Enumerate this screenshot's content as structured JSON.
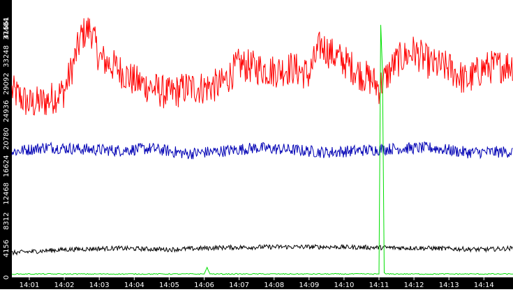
{
  "chart_data": {
    "type": "line",
    "title": "",
    "xlabel": "",
    "ylabel": "",
    "ylim": [
      0,
      41561
    ],
    "xlim": [
      "14:00:30",
      "14:14:50"
    ],
    "y_ticks": [
      "0",
      "4156",
      "8312",
      "12468",
      "16624",
      "20780",
      "24936",
      "29092",
      "33248",
      "37404",
      "41561"
    ],
    "x_ticks": [
      "14:01",
      "14:02",
      "14:03",
      "14:04",
      "14:05",
      "14:06",
      "14:07",
      "14:08",
      "14:09",
      "14:10",
      "14:11",
      "14:12",
      "14:13",
      "14:14"
    ],
    "grid": false,
    "legend": "none",
    "colors": {
      "background": "#ffffff",
      "axis_band": "#000000",
      "axis_text": "#ffffff",
      "red_series": "#ff0000",
      "blue_series": "#0000b4",
      "black_series": "#000000",
      "green_series": "#00e000"
    },
    "series": [
      {
        "color": "#ff0000",
        "x": [
          "14:00:30",
          "14:01:00",
          "14:01:30",
          "14:02:00",
          "14:02:15",
          "14:02:30",
          "14:02:45",
          "14:03:00",
          "14:03:30",
          "14:04:00",
          "14:04:30",
          "14:05:00",
          "14:05:30",
          "14:06:00",
          "14:06:30",
          "14:07:00",
          "14:07:30",
          "14:08:00",
          "14:08:30",
          "14:09:00",
          "14:09:20",
          "14:09:40",
          "14:10:00",
          "14:10:30",
          "14:10:50",
          "14:11:00",
          "14:11:30",
          "14:12:00",
          "14:12:30",
          "14:13:00",
          "14:13:30",
          "14:14:00",
          "14:14:50"
        ],
        "values": [
          28000,
          26000,
          26500,
          28000,
          32000,
          36500,
          37500,
          33000,
          31500,
          29500,
          28500,
          27500,
          28500,
          28500,
          29000,
          32000,
          31500,
          31000,
          31500,
          30500,
          35000,
          33500,
          32500,
          30500,
          29500,
          28500,
          32500,
          34000,
          32000,
          31500,
          29500,
          31500,
          32000
        ]
      },
      {
        "color": "#0000b4",
        "x": [
          "14:00:30",
          "14:01:30",
          "14:02:30",
          "14:03:30",
          "14:04:30",
          "14:05:30",
          "14:06:30",
          "14:07:30",
          "14:08:30",
          "14:09:30",
          "14:10:30",
          "14:11:30",
          "14:12:30",
          "14:13:30",
          "14:14:50"
        ],
        "values": [
          18800,
          19500,
          19200,
          19000,
          19300,
          18500,
          18900,
          19400,
          19100,
          18700,
          19000,
          19300,
          19400,
          18700,
          18800
        ]
      },
      {
        "color": "#000000",
        "x": [
          "14:00:30",
          "14:02:00",
          "14:03:30",
          "14:05:00",
          "14:06:30",
          "14:08:00",
          "14:09:30",
          "14:11:00",
          "14:12:30",
          "14:14:00",
          "14:14:50"
        ],
        "values": [
          3500,
          4000,
          4200,
          4000,
          4300,
          4400,
          4400,
          4300,
          4200,
          4000,
          4200
        ]
      },
      {
        "color": "#00e000",
        "x": [
          "14:00:30",
          "14:06:00",
          "14:06:05",
          "14:06:10",
          "14:11:00",
          "14:11:03",
          "14:11:06",
          "14:11:09",
          "14:11:12",
          "14:14:50"
        ],
        "values": [
          300,
          300,
          1300,
          300,
          300,
          38000,
          31000,
          500,
          300,
          300
        ]
      }
    ]
  }
}
